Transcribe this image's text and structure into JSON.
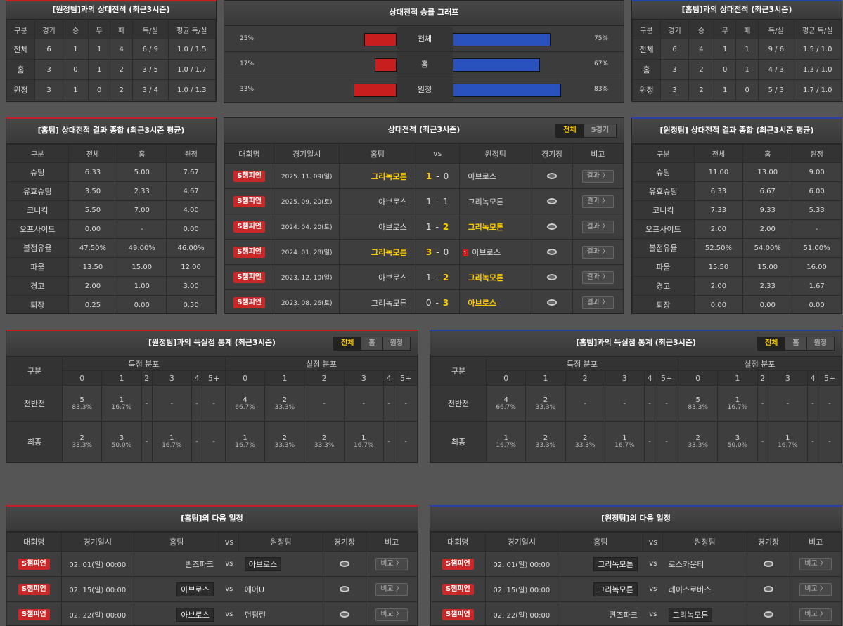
{
  "h2h_away": {
    "title": "[원정팀]과의 상대전적 (최근3시즌)",
    "cols": [
      "구분",
      "경기",
      "승",
      "무",
      "패",
      "득/실",
      "평균 득/실"
    ],
    "rows": [
      [
        "전체",
        "6",
        "1",
        "1",
        "4",
        "6 / 9",
        "1.0 / 1.5"
      ],
      [
        "홈",
        "3",
        "0",
        "1",
        "2",
        "3 / 5",
        "1.0 / 1.7"
      ],
      [
        "원정",
        "3",
        "1",
        "0",
        "2",
        "3 / 4",
        "1.0 / 1.3"
      ]
    ]
  },
  "graph": {
    "title": "상대전적 승률 그래프",
    "rows": [
      {
        "label": "전체",
        "left": "25%",
        "right": "75%",
        "left_val": 25,
        "right_val": 75
      },
      {
        "label": "홈",
        "left": "17%",
        "right": "67%",
        "left_val": 17,
        "right_val": 67
      },
      {
        "label": "원정",
        "left": "33%",
        "right": "83%",
        "left_val": 33,
        "right_val": 83
      }
    ]
  },
  "h2h_home": {
    "title": "[홈팀]과의 상대전적 (최근3시즌)",
    "cols": [
      "구분",
      "경기",
      "승",
      "무",
      "패",
      "득/실",
      "평균 득/실"
    ],
    "rows": [
      [
        "전체",
        "6",
        "4",
        "1",
        "1",
        "9 / 6",
        "1.5 / 1.0"
      ],
      [
        "홈",
        "3",
        "2",
        "0",
        "1",
        "4 / 3",
        "1.3 / 1.0"
      ],
      [
        "원정",
        "3",
        "2",
        "1",
        "0",
        "5 / 3",
        "1.7 / 1.0"
      ]
    ]
  },
  "home_summary": {
    "title": "[홈팀] 상대전적 결과 종합 (최근3시즌 평균)",
    "cols": [
      "구분",
      "전체",
      "홈",
      "원정"
    ],
    "rows": [
      [
        "슈팅",
        "6.33",
        "5.00",
        "7.67"
      ],
      [
        "유효슈팅",
        "3.50",
        "2.33",
        "4.67"
      ],
      [
        "코너킥",
        "5.50",
        "7.00",
        "4.00"
      ],
      [
        "오프사이드",
        "0.00",
        "-",
        "0.00"
      ],
      [
        "볼점유율",
        "47.50%",
        "49.00%",
        "46.00%"
      ],
      [
        "파울",
        "13.50",
        "15.00",
        "12.00"
      ],
      [
        "경고",
        "2.00",
        "1.00",
        "3.00"
      ],
      [
        "퇴장",
        "0.25",
        "0.00",
        "0.50"
      ]
    ]
  },
  "away_summary": {
    "title": "[원정팀] 상대전적 결과 종합 (최근3시즌 평균)",
    "cols": [
      "구분",
      "전체",
      "홈",
      "원정"
    ],
    "rows": [
      [
        "슈팅",
        "11.00",
        "13.00",
        "9.00"
      ],
      [
        "유효슈팅",
        "6.33",
        "6.67",
        "6.00"
      ],
      [
        "코너킥",
        "7.33",
        "9.33",
        "5.33"
      ],
      [
        "오프사이드",
        "2.00",
        "2.00",
        "-"
      ],
      [
        "볼점유율",
        "52.50%",
        "54.00%",
        "51.00%"
      ],
      [
        "파울",
        "15.50",
        "15.00",
        "16.00"
      ],
      [
        "경고",
        "2.00",
        "2.33",
        "1.67"
      ],
      [
        "퇴장",
        "0.00",
        "0.00",
        "0.00"
      ]
    ]
  },
  "h2h_list": {
    "title": "상대전적 (최근3시즌)",
    "tabs": [
      "전체",
      "5경기"
    ],
    "cols": {
      "league": "대회명",
      "date": "경기일시",
      "home": "홈팀",
      "vs": "vs",
      "away": "원정팀",
      "stadium": "경기장",
      "note": "비고"
    },
    "result_label": "결과 〉",
    "rows": [
      {
        "league": "S챔피언",
        "date": "2025. 11. 09(일)",
        "home": "그리녹모튼",
        "hs": "1",
        "as": "0",
        "away": "아브로스",
        "win": "home",
        "card": ""
      },
      {
        "league": "S챔피언",
        "date": "2025. 09. 20(토)",
        "home": "아브로스",
        "hs": "1",
        "as": "1",
        "away": "그리녹모튼",
        "win": "",
        "card": ""
      },
      {
        "league": "S챔피언",
        "date": "2024. 04. 20(토)",
        "home": "아브로스",
        "hs": "1",
        "as": "2",
        "away": "그리녹모튼",
        "win": "away",
        "card": ""
      },
      {
        "league": "S챔피언",
        "date": "2024. 01. 28(일)",
        "home": "그리녹모튼",
        "hs": "3",
        "as": "0",
        "away": "아브로스",
        "win": "home",
        "card": "1"
      },
      {
        "league": "S챔피언",
        "date": "2023. 12. 10(일)",
        "home": "아브로스",
        "hs": "1",
        "as": "2",
        "away": "그리녹모튼",
        "win": "away",
        "card": ""
      },
      {
        "league": "S챔피언",
        "date": "2023. 08. 26(토)",
        "home": "그리녹모튼",
        "hs": "0",
        "as": "3",
        "away": "아브로스",
        "win": "away",
        "card": ""
      }
    ]
  },
  "goals_away": {
    "title": "[원정팀]과의 득실점 통계 (최근3시즌)",
    "tabs": [
      "전체",
      "홈",
      "원정"
    ],
    "hdr": {
      "cat": "구분",
      "scored": "득점 분포",
      "conceded": "실점 분포"
    },
    "buckets": [
      "0",
      "1",
      "2",
      "3",
      "4",
      "5+"
    ],
    "rows": [
      {
        "label": "전반전",
        "cells": [
          [
            "5",
            "83.3%"
          ],
          [
            "1",
            "16.7%"
          ],
          [
            "-",
            ""
          ],
          [
            "-",
            ""
          ],
          [
            "-",
            ""
          ],
          [
            "-",
            ""
          ],
          [
            "4",
            "66.7%"
          ],
          [
            "2",
            "33.3%"
          ],
          [
            "-",
            ""
          ],
          [
            "-",
            ""
          ],
          [
            "-",
            ""
          ],
          [
            "-",
            ""
          ]
        ]
      },
      {
        "label": "최종",
        "cells": [
          [
            "2",
            "33.3%"
          ],
          [
            "3",
            "50.0%"
          ],
          [
            "-",
            ""
          ],
          [
            "1",
            "16.7%"
          ],
          [
            "-",
            ""
          ],
          [
            "-",
            ""
          ],
          [
            "1",
            "16.7%"
          ],
          [
            "2",
            "33.3%"
          ],
          [
            "2",
            "33.3%"
          ],
          [
            "1",
            "16.7%"
          ],
          [
            "-",
            ""
          ],
          [
            "-",
            ""
          ]
        ]
      }
    ]
  },
  "goals_home": {
    "title": "[홈팀]과의 득실점 통계 (최근3시즌)",
    "tabs": [
      "전체",
      "홈",
      "원정"
    ],
    "hdr": {
      "cat": "구분",
      "scored": "득점 분포",
      "conceded": "실점 분포"
    },
    "buckets": [
      "0",
      "1",
      "2",
      "3",
      "4",
      "5+"
    ],
    "rows": [
      {
        "label": "전반전",
        "cells": [
          [
            "4",
            "66.7%"
          ],
          [
            "2",
            "33.3%"
          ],
          [
            "-",
            ""
          ],
          [
            "-",
            ""
          ],
          [
            "-",
            ""
          ],
          [
            "-",
            ""
          ],
          [
            "5",
            "83.3%"
          ],
          [
            "1",
            "16.7%"
          ],
          [
            "-",
            ""
          ],
          [
            "-",
            ""
          ],
          [
            "-",
            ""
          ],
          [
            "-",
            ""
          ]
        ]
      },
      {
        "label": "최종",
        "cells": [
          [
            "1",
            "16.7%"
          ],
          [
            "2",
            "33.3%"
          ],
          [
            "2",
            "33.3%"
          ],
          [
            "1",
            "16.7%"
          ],
          [
            "-",
            ""
          ],
          [
            "-",
            ""
          ],
          [
            "2",
            "33.3%"
          ],
          [
            "3",
            "50.0%"
          ],
          [
            "-",
            ""
          ],
          [
            "1",
            "16.7%"
          ],
          [
            "-",
            ""
          ],
          [
            "-",
            ""
          ]
        ]
      }
    ]
  },
  "next_home": {
    "title": "[홈팀]의 다음 일정",
    "cols": {
      "league": "대회명",
      "date": "경기일시",
      "home": "홈팀",
      "vs": "vs",
      "away": "원정팀",
      "stadium": "경기장",
      "note": "비고"
    },
    "compare_label": "비교 〉",
    "rows": [
      {
        "league": "S챔피언",
        "date": "02. 01(일) 00:00",
        "home": "퀸즈파크",
        "away": "아브로스",
        "box": "away"
      },
      {
        "league": "S챔피언",
        "date": "02. 15(일) 00:00",
        "home": "아브로스",
        "away": "에어U",
        "box": "home"
      },
      {
        "league": "S챔피언",
        "date": "02. 22(일) 00:00",
        "home": "아브로스",
        "away": "던펌린",
        "box": "home"
      }
    ]
  },
  "next_away": {
    "title": "[원정팀]의 다음 일정",
    "cols": {
      "league": "대회명",
      "date": "경기일시",
      "home": "홈팀",
      "vs": "vs",
      "away": "원정팀",
      "stadium": "경기장",
      "note": "비고"
    },
    "compare_label": "비교 〉",
    "rows": [
      {
        "league": "S챔피언",
        "date": "02. 01(일) 00:00",
        "home": "그리녹모튼",
        "away": "로스카운티",
        "box": "home"
      },
      {
        "league": "S챔피언",
        "date": "02. 15(일) 00:00",
        "home": "그리녹모튼",
        "away": "레이스로버스",
        "box": "home"
      },
      {
        "league": "S챔피언",
        "date": "02. 22(일) 00:00",
        "home": "퀸즈파크",
        "away": "그리녹모튼",
        "box": "away"
      }
    ]
  }
}
